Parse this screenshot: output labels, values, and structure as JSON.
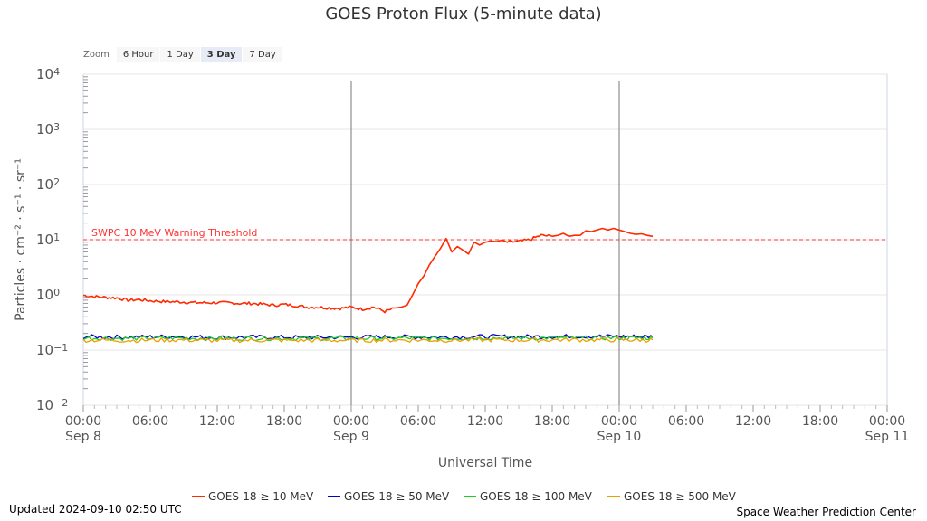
{
  "zoom": {
    "label": "Zoom",
    "buttons": [
      "6 Hour",
      "1 Day",
      "3 Day",
      "7 Day"
    ],
    "selected": "3 Day"
  },
  "footer": {
    "updated": "Updated 2024-09-10 02:50 UTC",
    "credit": "Space Weather Prediction Center"
  },
  "chart_data": {
    "type": "line",
    "title": "GOES Proton Flux (5-minute data)",
    "xlabel": "Universal Time",
    "ylabel": "Particles · cm⁻² · s⁻¹ · sr⁻¹",
    "y_scale": "log",
    "ylim_exponent": [
      -2,
      4
    ],
    "y_ticks": [
      {
        "base": "10",
        "exp": "4"
      },
      {
        "base": "10",
        "exp": "3"
      },
      {
        "base": "10",
        "exp": "2"
      },
      {
        "base": "10",
        "exp": "1"
      },
      {
        "base": "10",
        "exp": "0"
      },
      {
        "base": "10",
        "exp": "−1"
      },
      {
        "base": "10",
        "exp": "−2"
      }
    ],
    "x_range_hours": [
      0,
      72
    ],
    "x_ticks": [
      {
        "time": "00:00",
        "date": "Sep 8"
      },
      {
        "time": "06:00",
        "date": ""
      },
      {
        "time": "12:00",
        "date": ""
      },
      {
        "time": "18:00",
        "date": ""
      },
      {
        "time": "00:00",
        "date": "Sep 9"
      },
      {
        "time": "06:00",
        "date": ""
      },
      {
        "time": "12:00",
        "date": ""
      },
      {
        "time": "18:00",
        "date": ""
      },
      {
        "time": "00:00",
        "date": "Sep 10"
      },
      {
        "time": "06:00",
        "date": ""
      },
      {
        "time": "12:00",
        "date": ""
      },
      {
        "time": "18:00",
        "date": ""
      },
      {
        "time": "00:00",
        "date": "Sep 11"
      }
    ],
    "day_boundaries_hours": [
      24,
      48
    ],
    "threshold": {
      "label": "SWPC 10 MeV Warning Threshold",
      "value": 10,
      "color": "#ff3333"
    },
    "grid": true,
    "legend_position": "bottom",
    "series": [
      {
        "name": "GOES-18 ≥ 10 MeV",
        "color": "#ff2a00",
        "x": [
          0,
          1,
          2,
          3,
          4,
          5,
          6,
          7,
          8,
          9,
          10,
          11,
          12,
          13,
          14,
          15,
          16,
          17,
          18,
          19,
          20,
          21,
          22,
          23,
          24,
          25,
          26,
          27,
          28,
          28.5,
          29,
          29.5,
          30,
          30.5,
          31,
          31.5,
          32,
          32.5,
          33,
          33.5,
          34,
          34.5,
          35,
          35.5,
          36,
          36.5,
          37,
          37.5,
          38,
          39,
          40,
          41,
          42,
          42.5,
          43,
          43.5,
          44,
          44.5,
          45,
          45.5,
          46,
          46.5,
          47,
          47.5,
          48,
          48.5,
          49,
          49.5,
          50,
          50.5,
          51
        ],
        "y": [
          0.98,
          0.93,
          0.9,
          0.88,
          0.8,
          0.82,
          0.78,
          0.76,
          0.75,
          0.74,
          0.72,
          0.72,
          0.72,
          0.72,
          0.7,
          0.7,
          0.68,
          0.65,
          0.67,
          0.64,
          0.6,
          0.6,
          0.58,
          0.57,
          0.6,
          0.55,
          0.6,
          0.5,
          0.58,
          0.6,
          0.65,
          1.0,
          1.6,
          2.2,
          3.5,
          5.0,
          7.0,
          10.5,
          6.0,
          7.5,
          6.5,
          5.5,
          9.0,
          8.0,
          9.0,
          9.5,
          9.2,
          9.8,
          9.0,
          9.3,
          10.0,
          12.0,
          11.5,
          12.0,
          13.0,
          11.5,
          12.0,
          12.0,
          14.5,
          14.0,
          15.0,
          16.0,
          15.0,
          16.0,
          15.0,
          14.0,
          13.0,
          12.5,
          12.8,
          12.0,
          11.5
        ]
      },
      {
        "name": "GOES-18 ≥ 50 MeV",
        "color": "#0000cc",
        "x": [
          0,
          4,
          8,
          12,
          16,
          20,
          24,
          28,
          32,
          36,
          40,
          44,
          48,
          51
        ],
        "y": [
          0.175,
          0.172,
          0.176,
          0.17,
          0.172,
          0.17,
          0.171,
          0.174,
          0.172,
          0.176,
          0.175,
          0.178,
          0.177,
          0.176
        ]
      },
      {
        "name": "GOES-18 ≥ 100 MeV",
        "color": "#22cc22",
        "x": [
          0,
          4,
          8,
          12,
          16,
          20,
          24,
          28,
          32,
          36,
          40,
          44,
          48,
          51
        ],
        "y": [
          0.165,
          0.163,
          0.166,
          0.162,
          0.164,
          0.162,
          0.163,
          0.165,
          0.164,
          0.166,
          0.165,
          0.167,
          0.166,
          0.165
        ]
      },
      {
        "name": "GOES-18 ≥ 500 MeV",
        "color": "#e8a000",
        "x": [
          0,
          4,
          8,
          12,
          16,
          20,
          24,
          28,
          32,
          36,
          40,
          44,
          48,
          51
        ],
        "y": [
          0.152,
          0.15,
          0.153,
          0.149,
          0.151,
          0.15,
          0.15,
          0.152,
          0.151,
          0.153,
          0.152,
          0.154,
          0.153,
          0.152
        ]
      }
    ]
  }
}
